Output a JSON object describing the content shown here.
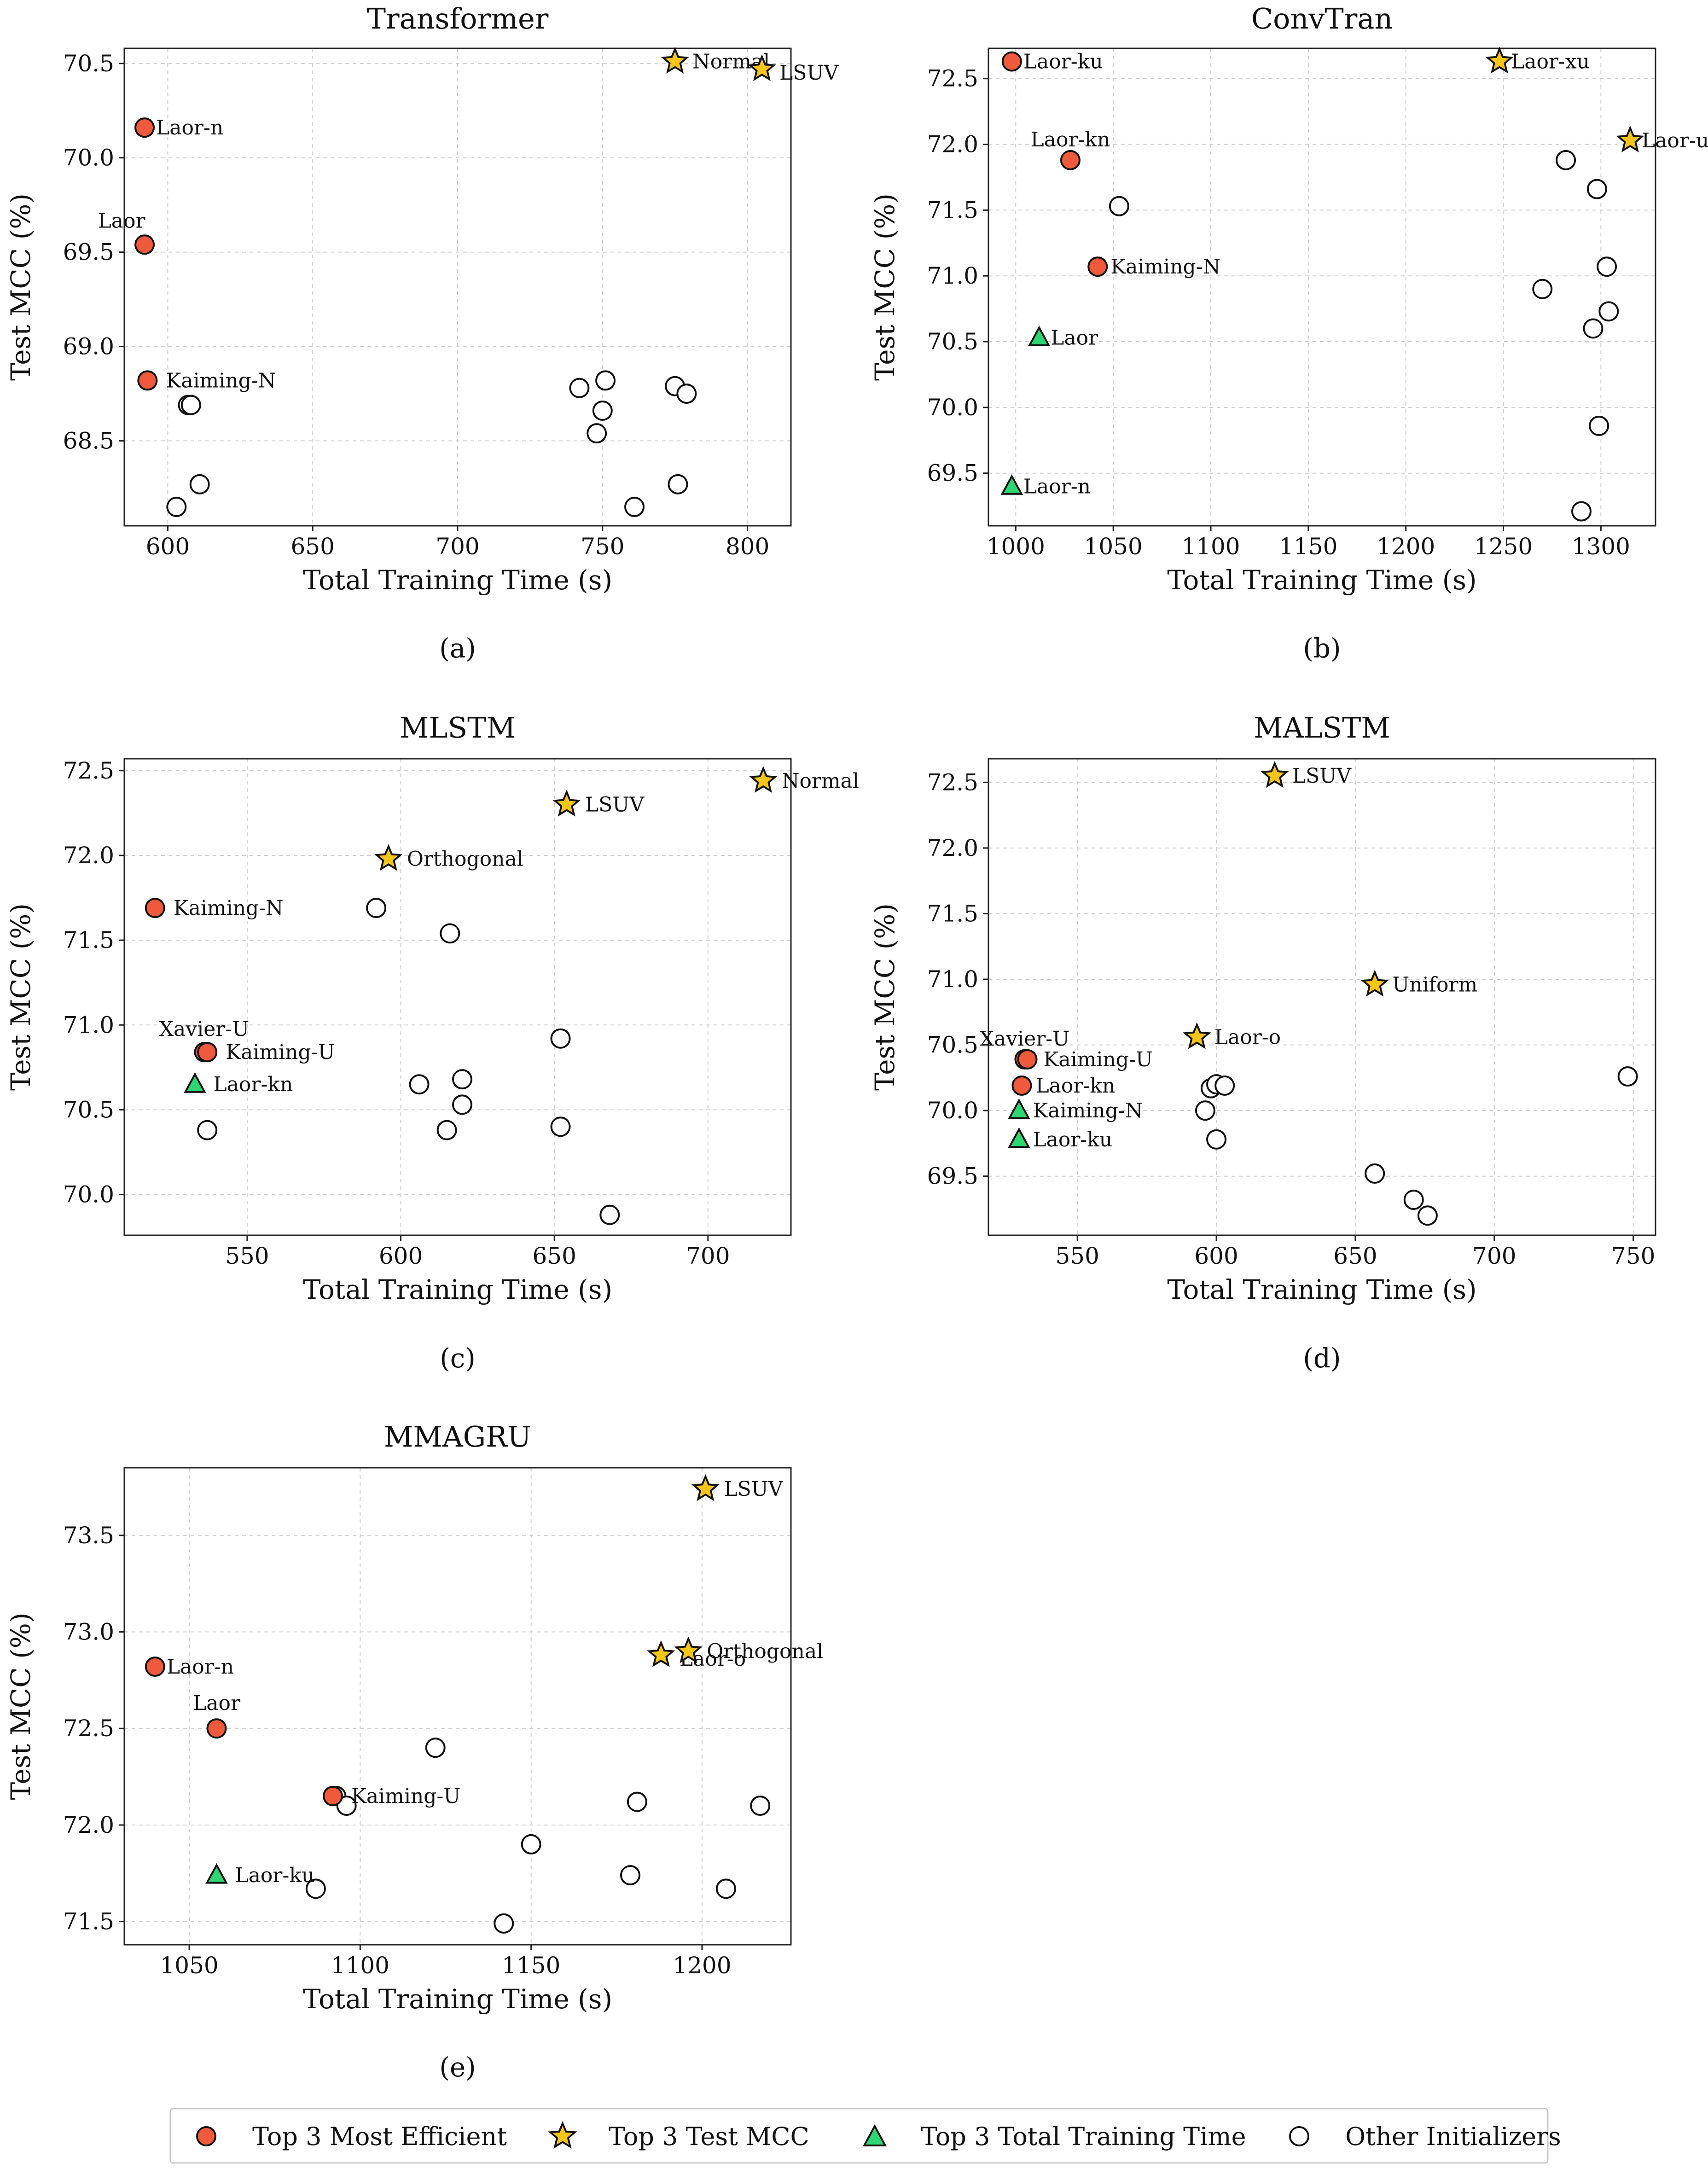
{
  "figure_labels": [
    "(a)",
    "(b)",
    "(c)",
    "(d)",
    "(e)"
  ],
  "legend": {
    "items": [
      {
        "label": "Top 3 Most Efficient",
        "marker": "circle",
        "color": "#f05a3c"
      },
      {
        "label": "Top 3 Test MCC",
        "marker": "star",
        "color": "#f5c518"
      },
      {
        "label": "Top 3 Total Training Time",
        "marker": "triangle",
        "color": "#2ed573"
      },
      {
        "label": "Other Initializers",
        "marker": "circle",
        "color": "#ffffff"
      }
    ]
  },
  "colors": {
    "efficient": "#f05a3c",
    "mcc": "#f5c518",
    "time": "#2ed573",
    "other": "#ffffff",
    "edge": "#111111"
  },
  "chart_data": [
    {
      "type": "scatter",
      "title": "Transformer",
      "xlabel": "Total Training Time (s)",
      "ylabel": "Test MCC (%)",
      "xlim": [
        585,
        815
      ],
      "ylim": [
        68.05,
        70.58
      ],
      "xticks": [
        600,
        650,
        700,
        750,
        800
      ],
      "yticks": [
        68.5,
        69.0,
        69.5,
        70.0,
        70.5
      ],
      "points": [
        {
          "x": 775,
          "y": 70.51,
          "cat": "mcc",
          "label": "Normal"
        },
        {
          "x": 805,
          "y": 70.47,
          "cat": "mcc",
          "label": "LSUV"
        },
        {
          "x": 592,
          "y": 70.16,
          "cat": "efficient",
          "label": "Laor-n"
        },
        {
          "x": 592,
          "y": 69.54,
          "cat": "efficient",
          "label": "Laor"
        },
        {
          "x": 593,
          "y": 68.82,
          "cat": "efficient",
          "label": "Kaiming-N"
        },
        {
          "x": 607,
          "y": 68.69,
          "cat": "other"
        },
        {
          "x": 608,
          "y": 68.69,
          "cat": "other"
        },
        {
          "x": 611,
          "y": 68.27,
          "cat": "other"
        },
        {
          "x": 603,
          "y": 68.15,
          "cat": "other"
        },
        {
          "x": 742,
          "y": 68.78,
          "cat": "other"
        },
        {
          "x": 751,
          "y": 68.82,
          "cat": "other"
        },
        {
          "x": 750,
          "y": 68.66,
          "cat": "other"
        },
        {
          "x": 748,
          "y": 68.54,
          "cat": "other"
        },
        {
          "x": 775,
          "y": 68.79,
          "cat": "other"
        },
        {
          "x": 779,
          "y": 68.75,
          "cat": "other"
        },
        {
          "x": 776,
          "y": 68.27,
          "cat": "other"
        },
        {
          "x": 761,
          "y": 68.15,
          "cat": "other"
        }
      ]
    },
    {
      "type": "scatter",
      "title": "ConvTran",
      "xlabel": "Total Training Time (s)",
      "ylabel": "Test MCC (%)",
      "xlim": [
        986,
        1328
      ],
      "ylim": [
        69.1,
        72.73
      ],
      "xticks": [
        1000,
        1050,
        1100,
        1150,
        1200,
        1250,
        1300
      ],
      "yticks": [
        69.5,
        70.0,
        70.5,
        71.0,
        71.5,
        72.0,
        72.5
      ],
      "points": [
        {
          "x": 998,
          "y": 72.63,
          "cat": "efficient",
          "label": "Laor-ku"
        },
        {
          "x": 1248,
          "y": 72.63,
          "cat": "mcc",
          "label": "Laor-xu"
        },
        {
          "x": 1028,
          "y": 71.88,
          "cat": "efficient",
          "label": "Laor-kn"
        },
        {
          "x": 1315,
          "y": 72.03,
          "cat": "mcc",
          "label": "Laor-u"
        },
        {
          "x": 1053,
          "y": 71.53,
          "cat": "other"
        },
        {
          "x": 1042,
          "y": 71.07,
          "cat": "efficient",
          "label": "Kaiming-N"
        },
        {
          "x": 1012,
          "y": 70.53,
          "cat": "time",
          "label": "Laor"
        },
        {
          "x": 998,
          "y": 69.4,
          "cat": "time",
          "label": "Laor-n"
        },
        {
          "x": 1282,
          "y": 71.88,
          "cat": "other"
        },
        {
          "x": 1298,
          "y": 71.66,
          "cat": "other"
        },
        {
          "x": 1303,
          "y": 71.07,
          "cat": "other"
        },
        {
          "x": 1270,
          "y": 70.9,
          "cat": "other"
        },
        {
          "x": 1304,
          "y": 70.73,
          "cat": "other"
        },
        {
          "x": 1296,
          "y": 70.6,
          "cat": "other"
        },
        {
          "x": 1299,
          "y": 69.86,
          "cat": "other"
        },
        {
          "x": 1290,
          "y": 69.21,
          "cat": "other"
        }
      ]
    },
    {
      "type": "scatter",
      "title": "MLSTM",
      "xlabel": "Total Training Time (s)",
      "ylabel": "Test MCC (%)",
      "xlim": [
        510,
        727
      ],
      "ylim": [
        69.76,
        72.57
      ],
      "xticks": [
        550,
        600,
        650,
        700
      ],
      "yticks": [
        70.0,
        70.5,
        71.0,
        71.5,
        72.0,
        72.5
      ],
      "points": [
        {
          "x": 718,
          "y": 72.44,
          "cat": "mcc",
          "label": "Normal"
        },
        {
          "x": 654,
          "y": 72.3,
          "cat": "mcc",
          "label": "LSUV"
        },
        {
          "x": 596,
          "y": 71.98,
          "cat": "mcc",
          "label": "Orthogonal"
        },
        {
          "x": 520,
          "y": 71.69,
          "cat": "efficient",
          "label": "Kaiming-N"
        },
        {
          "x": 536,
          "y": 70.84,
          "cat": "efficient",
          "label": "Xavier-U"
        },
        {
          "x": 537,
          "y": 70.84,
          "cat": "efficient",
          "label": "Kaiming-U"
        },
        {
          "x": 533,
          "y": 70.65,
          "cat": "time",
          "label": "Laor-kn"
        },
        {
          "x": 537,
          "y": 70.38,
          "cat": "other"
        },
        {
          "x": 592,
          "y": 71.69,
          "cat": "other"
        },
        {
          "x": 616,
          "y": 71.54,
          "cat": "other"
        },
        {
          "x": 652,
          "y": 70.92,
          "cat": "other"
        },
        {
          "x": 606,
          "y": 70.65,
          "cat": "other"
        },
        {
          "x": 620,
          "y": 70.68,
          "cat": "other"
        },
        {
          "x": 620,
          "y": 70.53,
          "cat": "other"
        },
        {
          "x": 615,
          "y": 70.38,
          "cat": "other"
        },
        {
          "x": 652,
          "y": 70.4,
          "cat": "other"
        },
        {
          "x": 668,
          "y": 69.88,
          "cat": "other"
        }
      ]
    },
    {
      "type": "scatter",
      "title": "MALSTM",
      "xlabel": "Total Training Time (s)",
      "ylabel": "Test MCC (%)",
      "xlim": [
        518,
        758
      ],
      "ylim": [
        69.05,
        72.68
      ],
      "xticks": [
        550,
        600,
        650,
        700,
        750
      ],
      "yticks": [
        69.5,
        70.0,
        70.5,
        71.0,
        71.5,
        72.0,
        72.5
      ],
      "points": [
        {
          "x": 621,
          "y": 72.55,
          "cat": "mcc",
          "label": "LSUV"
        },
        {
          "x": 657,
          "y": 70.96,
          "cat": "mcc",
          "label": "Uniform"
        },
        {
          "x": 593,
          "y": 70.56,
          "cat": "mcc",
          "label": "Laor-o"
        },
        {
          "x": 531,
          "y": 70.39,
          "cat": "efficient",
          "label": "Xavier-U"
        },
        {
          "x": 532,
          "y": 70.39,
          "cat": "efficient",
          "label": "Kaiming-U"
        },
        {
          "x": 530,
          "y": 70.19,
          "cat": "efficient",
          "label": "Laor-kn"
        },
        {
          "x": 529,
          "y": 70.0,
          "cat": "time",
          "label": "Kaiming-N"
        },
        {
          "x": 529,
          "y": 69.78,
          "cat": "time",
          "label": "Laor-ku"
        },
        {
          "x": 598,
          "y": 70.17,
          "cat": "other"
        },
        {
          "x": 600,
          "y": 70.2,
          "cat": "other"
        },
        {
          "x": 603,
          "y": 70.19,
          "cat": "other"
        },
        {
          "x": 596,
          "y": 70.0,
          "cat": "other"
        },
        {
          "x": 600,
          "y": 69.78,
          "cat": "other"
        },
        {
          "x": 748,
          "y": 70.26,
          "cat": "other"
        },
        {
          "x": 657,
          "y": 69.52,
          "cat": "other"
        },
        {
          "x": 671,
          "y": 69.32,
          "cat": "other"
        },
        {
          "x": 676,
          "y": 69.2,
          "cat": "other"
        }
      ]
    },
    {
      "type": "scatter",
      "title": "MMAGRU",
      "xlabel": "Total Training Time (s)",
      "ylabel": "Test MCC (%)",
      "xlim": [
        1031,
        1226
      ],
      "ylim": [
        71.38,
        73.85
      ],
      "xticks": [
        1050,
        1100,
        1150,
        1200
      ],
      "yticks": [
        71.5,
        72.0,
        72.5,
        73.0,
        73.5
      ],
      "points": [
        {
          "x": 1201,
          "y": 73.74,
          "cat": "mcc",
          "label": "LSUV"
        },
        {
          "x": 1188,
          "y": 72.88,
          "cat": "mcc",
          "label": "Laor-o"
        },
        {
          "x": 1196,
          "y": 72.9,
          "cat": "mcc",
          "label": "Orthogonal"
        },
        {
          "x": 1040,
          "y": 72.82,
          "cat": "efficient",
          "label": "Laor-n"
        },
        {
          "x": 1058,
          "y": 72.5,
          "cat": "efficient",
          "label": "Laor"
        },
        {
          "x": 1092,
          "y": 72.15,
          "cat": "efficient",
          "label": "Kaiming-U"
        },
        {
          "x": 1058,
          "y": 71.74,
          "cat": "time",
          "label": "Laor-ku"
        },
        {
          "x": 1093,
          "y": 72.15,
          "cat": "other"
        },
        {
          "x": 1096,
          "y": 72.1,
          "cat": "other"
        },
        {
          "x": 1122,
          "y": 72.4,
          "cat": "other"
        },
        {
          "x": 1181,
          "y": 72.12,
          "cat": "other"
        },
        {
          "x": 1217,
          "y": 72.1,
          "cat": "other"
        },
        {
          "x": 1150,
          "y": 71.9,
          "cat": "other"
        },
        {
          "x": 1179,
          "y": 71.74,
          "cat": "other"
        },
        {
          "x": 1087,
          "y": 71.67,
          "cat": "other"
        },
        {
          "x": 1207,
          "y": 71.67,
          "cat": "other"
        },
        {
          "x": 1142,
          "y": 71.49,
          "cat": "other"
        }
      ]
    }
  ]
}
